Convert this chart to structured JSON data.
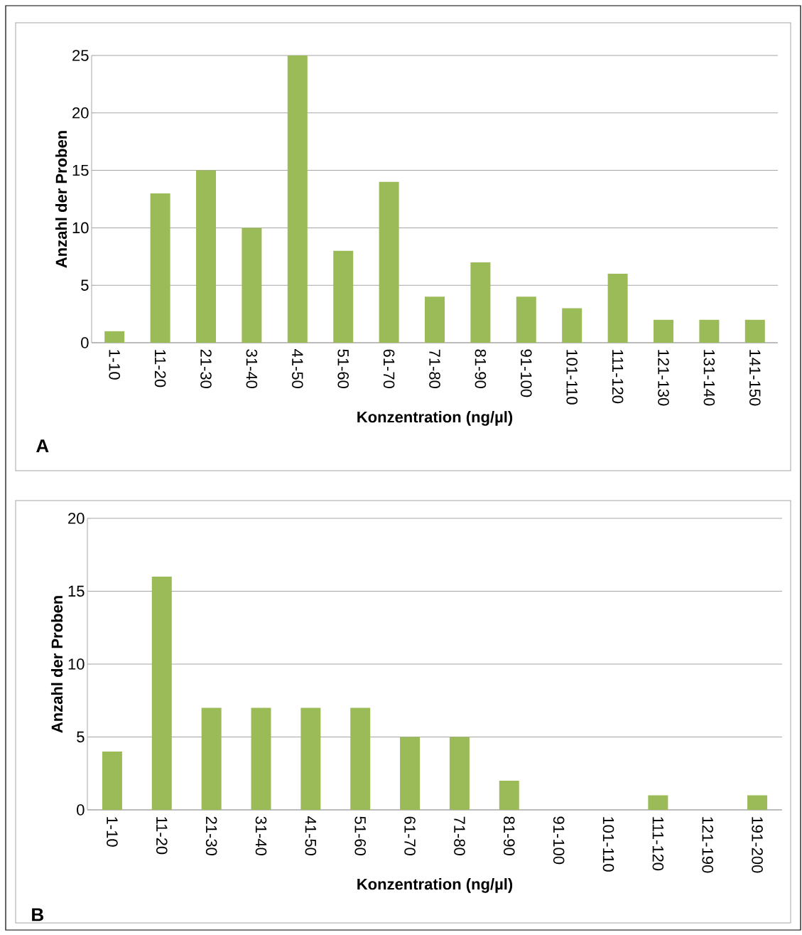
{
  "chart_data": [
    {
      "type": "bar",
      "categories": [
        "1-10",
        "11-20",
        "21-30",
        "31-40",
        "41-50",
        "51-60",
        "61-70",
        "71-80",
        "81-90",
        "91-100",
        "101-110",
        "111-120",
        "121-130",
        "131-140",
        "141-150"
      ],
      "values": [
        1,
        13,
        15,
        10,
        25,
        8,
        14,
        4,
        7,
        4,
        3,
        6,
        2,
        2,
        2
      ],
      "color": "#9bbb59",
      "ylim": [
        0,
        25
      ],
      "yticks": [
        0,
        5,
        10,
        15,
        20,
        25
      ],
      "grid": "y",
      "xlabel": "Konzentration (ng/µl)",
      "ylabel": "Anzahl der Proben",
      "annotations": [
        "A"
      ]
    },
    {
      "type": "bar",
      "categories": [
        "1-10",
        "11-20",
        "21-30",
        "31-40",
        "41-50",
        "51-60",
        "61-70",
        "71-80",
        "81-90",
        "91-100",
        "101-110",
        "111-120",
        "121-190",
        "191-200"
      ],
      "values": [
        4,
        16,
        7,
        7,
        7,
        7,
        5,
        5,
        2,
        0,
        0,
        1,
        0,
        1
      ],
      "color": "#9bbb59",
      "ylim": [
        0,
        20
      ],
      "yticks": [
        0,
        5,
        10,
        15,
        20
      ],
      "grid": "y",
      "xlabel": "Konzentration (ng/µl)",
      "ylabel": "Anzahl der Proben",
      "annotations": [
        "B"
      ]
    }
  ]
}
